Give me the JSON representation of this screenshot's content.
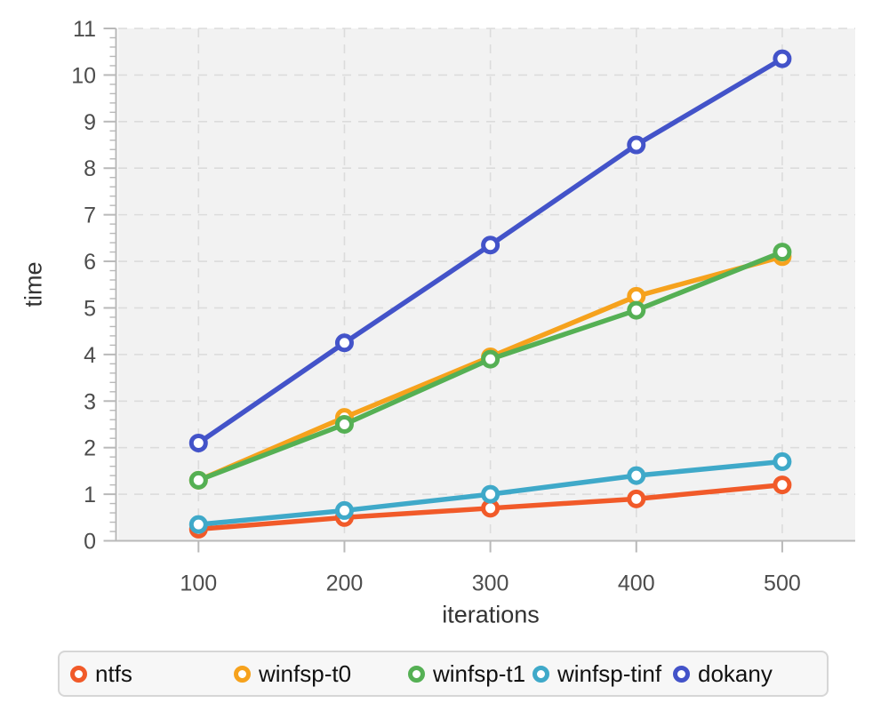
{
  "chart_data": {
    "type": "line",
    "title": "",
    "xlabel": "iterations",
    "ylabel": "time",
    "x": [
      100,
      200,
      300,
      400,
      500
    ],
    "series": [
      {
        "name": "ntfs",
        "color": "#f15a29",
        "values": [
          0.25,
          0.5,
          0.7,
          0.9,
          1.2
        ]
      },
      {
        "name": "winfsp-t0",
        "color": "#f6a21d",
        "values": [
          1.3,
          2.65,
          3.95,
          5.25,
          6.1
        ]
      },
      {
        "name": "winfsp-t1",
        "color": "#55b054",
        "values": [
          1.3,
          2.5,
          3.9,
          4.95,
          6.2
        ]
      },
      {
        "name": "winfsp-tinf",
        "color": "#3fa9c9",
        "values": [
          0.35,
          0.65,
          1.0,
          1.4,
          1.7
        ]
      },
      {
        "name": "dokany",
        "color": "#4353c9",
        "values": [
          2.1,
          4.25,
          6.35,
          8.5,
          10.35
        ]
      }
    ],
    "xlim": [
      45,
      550
    ],
    "ylim": [
      0,
      11
    ],
    "x_ticks": [
      100,
      200,
      300,
      400,
      500
    ],
    "y_ticks": [
      0,
      1,
      2,
      3,
      4,
      5,
      6,
      7,
      8,
      9,
      10,
      11
    ],
    "y_minor_tick_step": 0.2,
    "grid": true,
    "grid_style": "dashed",
    "legend_position": "bottom",
    "marker": "open-circle"
  },
  "style": {
    "plot_background": "#f2f2f2",
    "grid_color": "#dcdcdc",
    "axis_color": "#b9b9b9",
    "tick_label_color": "#4d4d4d",
    "axis_title_color": "#333333",
    "legend_background": "#f7f7f7",
    "legend_border": "#d6d6d6",
    "legend_text_color": "#111111",
    "marker_fill": "#ffffff"
  }
}
